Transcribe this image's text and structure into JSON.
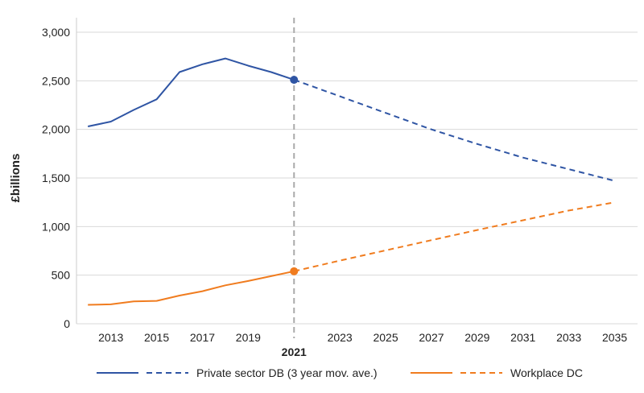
{
  "chart_data": {
    "type": "line",
    "ylabel": "£billions",
    "ylim": [
      0,
      3000
    ],
    "y_ticks": [
      0,
      500,
      1000,
      1500,
      2000,
      2500,
      3000
    ],
    "y_tick_labels": [
      "0",
      "500",
      "1,000",
      "1,500",
      "2,000",
      "2,500",
      "3,000"
    ],
    "xlim": [
      2011.5,
      2036
    ],
    "x_ticks": [
      2013,
      2015,
      2017,
      2019,
      2023,
      2025,
      2027,
      2029,
      2031,
      2033,
      2035
    ],
    "x_tick_labels": [
      "2013",
      "2015",
      "2017",
      "2019",
      "2023",
      "2025",
      "2027",
      "2029",
      "2031",
      "2033",
      "2035"
    ],
    "grid": true,
    "divider": {
      "x": 2021,
      "label": "2021",
      "color": "#aaaaaa",
      "label_color": "#2b2458"
    },
    "legend_position": "bottom",
    "series": [
      {
        "name": "Private sector DB (3 year mov. ave.)",
        "color": "#2f55a4",
        "historical": {
          "x": [
            2012,
            2013,
            2014,
            2015,
            2016,
            2017,
            2018,
            2019,
            2020,
            2021
          ],
          "y": [
            2030,
            2080,
            2200,
            2310,
            2590,
            2670,
            2730,
            2655,
            2590,
            2510
          ]
        },
        "projection": {
          "x": [
            2021,
            2023,
            2025,
            2027,
            2029,
            2031,
            2033,
            2035
          ],
          "y": [
            2510,
            2340,
            2170,
            2000,
            1850,
            1710,
            1590,
            1470
          ]
        }
      },
      {
        "name": "Workplace DC",
        "color": "#f07c1f",
        "historical": {
          "x": [
            2012,
            2013,
            2014,
            2015,
            2016,
            2017,
            2018,
            2019,
            2020,
            2021
          ],
          "y": [
            195,
            200,
            230,
            235,
            290,
            335,
            395,
            440,
            490,
            540
          ]
        },
        "projection": {
          "x": [
            2021,
            2023,
            2025,
            2027,
            2029,
            2031,
            2033,
            2035
          ],
          "y": [
            540,
            650,
            755,
            860,
            965,
            1065,
            1165,
            1250
          ]
        }
      }
    ]
  }
}
